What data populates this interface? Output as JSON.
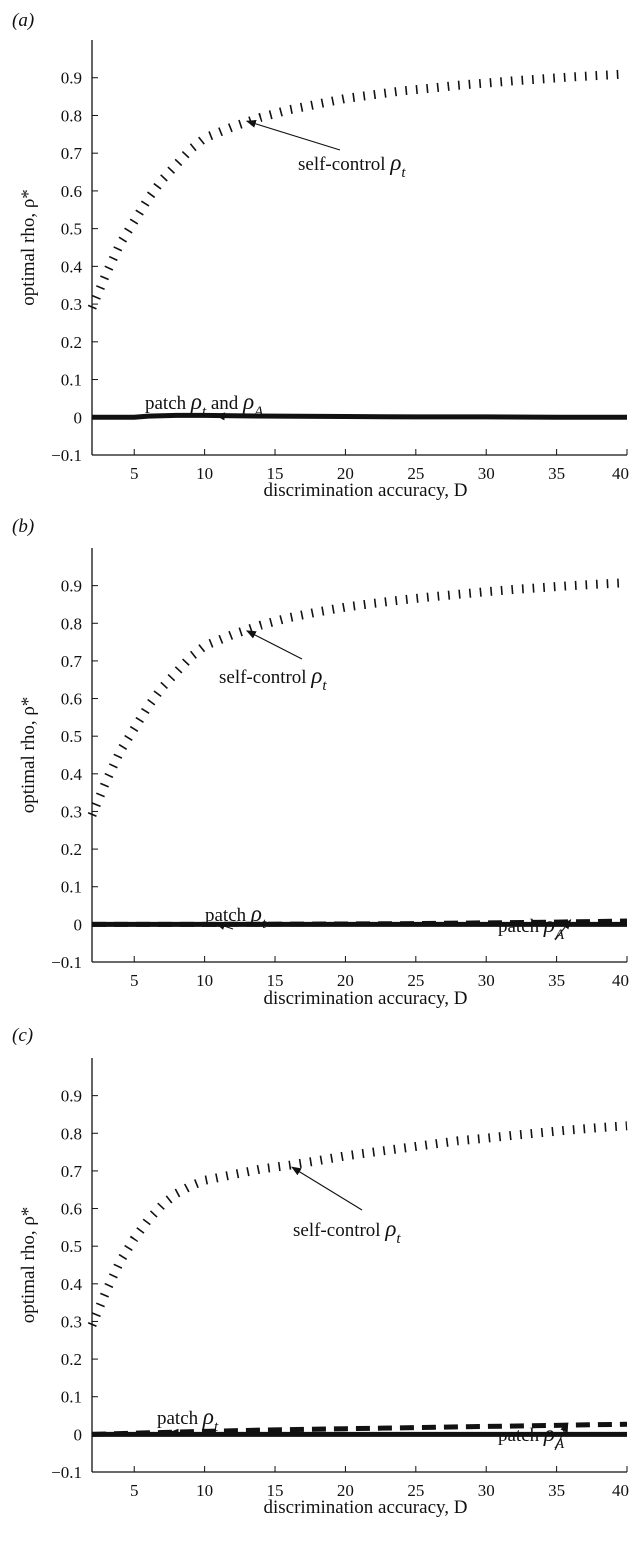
{
  "figure": {
    "panels": [
      {
        "label": "(a)",
        "ylabel": "optimal rho, ρ*",
        "xlabel": "discrimination accuracy, D",
        "annotations": [
          {
            "id": "self-control",
            "parts": [
              {
                "text": "self-control ",
                "style": "plain"
              },
              {
                "text": "ρ",
                "style": "sym"
              },
              {
                "text": "t",
                "style": "sub"
              }
            ]
          },
          {
            "id": "patch-both",
            "parts": [
              {
                "text": "patch ",
                "style": "plain"
              },
              {
                "text": "ρ",
                "style": "sym"
              },
              {
                "text": "t",
                "style": "sub"
              },
              {
                "text": " and ",
                "style": "plain"
              },
              {
                "text": "ρ",
                "style": "sym"
              },
              {
                "text": "A",
                "style": "sub"
              }
            ]
          }
        ]
      },
      {
        "label": "(b)",
        "ylabel": "optimal rho, ρ*",
        "xlabel": "discrimination accuracy, D",
        "annotations": [
          {
            "id": "self-control",
            "parts": [
              {
                "text": "self-control ",
                "style": "plain"
              },
              {
                "text": "ρ",
                "style": "sym"
              },
              {
                "text": "t",
                "style": "sub"
              }
            ]
          },
          {
            "id": "patch-t",
            "parts": [
              {
                "text": "patch ",
                "style": "plain"
              },
              {
                "text": "ρ",
                "style": "sym"
              },
              {
                "text": "t",
                "style": "sub"
              }
            ]
          },
          {
            "id": "patch-A",
            "parts": [
              {
                "text": "patch ",
                "style": "plain"
              },
              {
                "text": "ρ",
                "style": "sym"
              },
              {
                "text": "A",
                "style": "sub"
              }
            ]
          }
        ]
      },
      {
        "label": "(c)",
        "ylabel": "optimal rho, ρ*",
        "xlabel": "discrimination accuracy, D",
        "annotations": [
          {
            "id": "self-control",
            "parts": [
              {
                "text": "self-control ",
                "style": "plain"
              },
              {
                "text": "ρ",
                "style": "sym"
              },
              {
                "text": "t",
                "style": "sub"
              }
            ]
          },
          {
            "id": "patch-t",
            "parts": [
              {
                "text": "patch ",
                "style": "plain"
              },
              {
                "text": "ρ",
                "style": "sym"
              },
              {
                "text": "t",
                "style": "sub"
              }
            ]
          },
          {
            "id": "patch-A",
            "parts": [
              {
                "text": "patch ",
                "style": "plain"
              },
              {
                "text": "ρ",
                "style": "sym"
              },
              {
                "text": "A",
                "style": "sub"
              }
            ]
          }
        ]
      }
    ]
  },
  "chart_data": [
    {
      "type": "line",
      "panel": "(a)",
      "xlabel": "discrimination accuracy, D",
      "ylabel": "optimal rho, ρ*",
      "xlim": [
        2,
        40
      ],
      "ylim": [
        -0.1,
        1.0
      ],
      "xticks": [
        "5",
        "10",
        "15",
        "20",
        "25",
        "30",
        "35",
        "40"
      ],
      "yticks": [
        "−0.1",
        "0",
        "0.1",
        "0.2",
        "0.3",
        "0.4",
        "0.5",
        "0.6",
        "0.7",
        "0.8",
        "0.9"
      ],
      "grid": false,
      "series": [
        {
          "style": "dotted",
          "x": [
            2,
            3,
            4,
            5,
            6,
            7,
            8,
            9,
            10,
            12,
            14,
            16,
            18,
            20,
            22,
            24,
            26,
            28,
            30,
            32,
            34,
            36,
            38,
            40
          ],
          "y": [
            0.29,
            0.38,
            0.46,
            0.52,
            0.58,
            0.63,
            0.67,
            0.71,
            0.74,
            0.77,
            0.795,
            0.815,
            0.83,
            0.845,
            0.855,
            0.865,
            0.872,
            0.88,
            0.886,
            0.892,
            0.897,
            0.902,
            0.906,
            0.91
          ]
        },
        {
          "style": "thick-solid",
          "x": [
            2,
            5,
            6,
            8,
            10,
            12,
            15,
            20,
            25,
            30,
            35,
            40
          ],
          "y": [
            0.0,
            0.0,
            0.003,
            0.005,
            0.005,
            0.004,
            0.003,
            0.002,
            0.001,
            0.001,
            0.0,
            0.0
          ]
        }
      ]
    },
    {
      "type": "line",
      "panel": "(b)",
      "xlabel": "discrimination accuracy, D",
      "ylabel": "optimal rho, ρ*",
      "xlim": [
        2,
        40
      ],
      "ylim": [
        -0.1,
        1.0
      ],
      "xticks": [
        "5",
        "10",
        "15",
        "20",
        "25",
        "30",
        "35",
        "40"
      ],
      "yticks": [
        "−0.1",
        "0",
        "0.1",
        "0.2",
        "0.3",
        "0.4",
        "0.5",
        "0.6",
        "0.7",
        "0.8",
        "0.9"
      ],
      "grid": false,
      "series": [
        {
          "style": "dotted",
          "x": [
            2,
            3,
            4,
            5,
            6,
            7,
            8,
            9,
            10,
            12,
            14,
            16,
            18,
            20,
            22,
            24,
            26,
            28,
            30,
            32,
            34,
            36,
            38,
            40
          ],
          "y": [
            0.29,
            0.38,
            0.46,
            0.52,
            0.58,
            0.63,
            0.67,
            0.71,
            0.74,
            0.77,
            0.795,
            0.815,
            0.83,
            0.843,
            0.853,
            0.862,
            0.87,
            0.877,
            0.884,
            0.89,
            0.895,
            0.9,
            0.904,
            0.908
          ]
        },
        {
          "style": "thick-solid",
          "x": [
            2,
            40
          ],
          "y": [
            0.0,
            0.0
          ]
        },
        {
          "style": "thick-dashed",
          "x": [
            2,
            10,
            20,
            25,
            30,
            35,
            40
          ],
          "y": [
            0.0,
            0.0,
            0.001,
            0.002,
            0.004,
            0.006,
            0.009
          ]
        }
      ]
    },
    {
      "type": "line",
      "panel": "(c)",
      "xlabel": "discrimination accuracy, D",
      "ylabel": "optimal rho, ρ*",
      "xlim": [
        2,
        40
      ],
      "ylim": [
        -0.1,
        1.0
      ],
      "xticks": [
        "5",
        "10",
        "15",
        "20",
        "25",
        "30",
        "35",
        "40"
      ],
      "yticks": [
        "−0.1",
        "0",
        "0.1",
        "0.2",
        "0.3",
        "0.4",
        "0.5",
        "0.6",
        "0.7",
        "0.8",
        "0.9"
      ],
      "grid": false,
      "series": [
        {
          "style": "dotted",
          "x": [
            2,
            3,
            4,
            5,
            6,
            7,
            8,
            9,
            10,
            12,
            14,
            16,
            18,
            20,
            22,
            24,
            26,
            28,
            30,
            32,
            34,
            36,
            38,
            40
          ],
          "y": [
            0.29,
            0.38,
            0.46,
            0.52,
            0.57,
            0.61,
            0.64,
            0.66,
            0.675,
            0.69,
            0.705,
            0.715,
            0.727,
            0.74,
            0.75,
            0.76,
            0.77,
            0.78,
            0.787,
            0.795,
            0.802,
            0.809,
            0.815,
            0.82
          ]
        },
        {
          "style": "thick-solid",
          "x": [
            2,
            40
          ],
          "y": [
            0.0,
            0.0
          ]
        },
        {
          "style": "thick-dashed",
          "x": [
            2,
            5,
            10,
            15,
            20,
            25,
            30,
            35,
            40
          ],
          "y": [
            0.0,
            0.003,
            0.008,
            0.012,
            0.015,
            0.018,
            0.021,
            0.024,
            0.027
          ]
        }
      ]
    }
  ]
}
